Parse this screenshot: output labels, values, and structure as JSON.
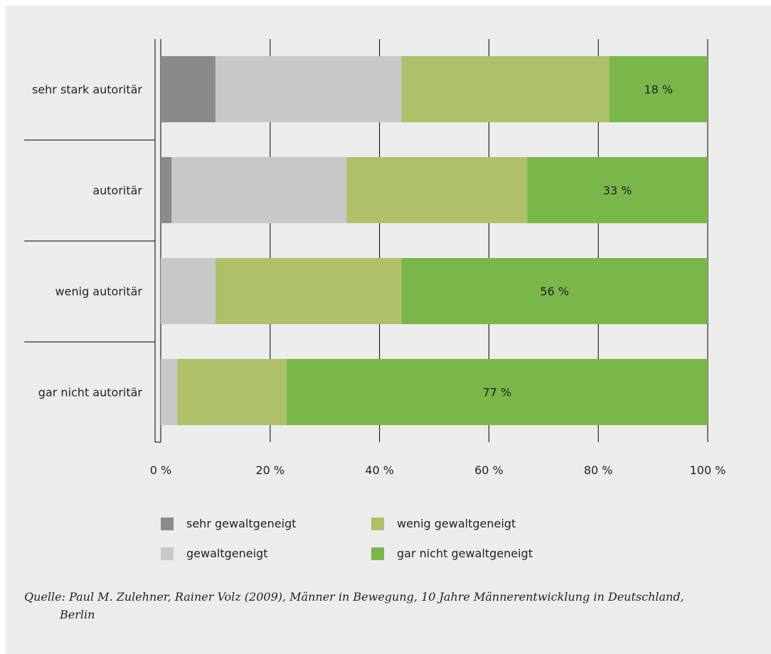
{
  "colors": {
    "sehr_gewaltgeneigt": "#8a8a8a",
    "gewaltgeneigt": "#c8c8c9",
    "wenig_gewaltgeneigt": "#afc06a",
    "gar_nicht_gewaltgeneigt": "#7ab74a",
    "background": "#ebeceb",
    "grid": "#000000"
  },
  "chart_data": {
    "type": "bar",
    "orientation": "horizontal",
    "stacked": true,
    "categories": [
      "sehr stark autoritär",
      "autoritär",
      "wenig autoritär",
      "gar nicht autoritär"
    ],
    "series": [
      {
        "name": "sehr gewaltgeneigt",
        "values": [
          10,
          2,
          0,
          0
        ]
      },
      {
        "name": "gewaltgeneigt",
        "values": [
          34,
          32,
          10,
          3
        ]
      },
      {
        "name": "wenig gewaltgeneigt",
        "values": [
          38,
          33,
          34,
          20
        ]
      },
      {
        "name": "gar nicht gewaltgeneigt",
        "values": [
          18,
          33,
          56,
          77
        ]
      }
    ],
    "data_labels": [
      "18 %",
      "33 %",
      "56 %",
      "77 %"
    ],
    "xticks": [
      "0 %",
      "20 %",
      "40 %",
      "60 %",
      "80 %",
      "100 %"
    ],
    "xlim": [
      0,
      100
    ],
    "grid": "vertical",
    "legend_position": "bottom"
  },
  "legend": [
    {
      "label": "sehr gewaltgeneigt",
      "color_key": "sehr_gewaltgeneigt"
    },
    {
      "label": "gewaltgeneigt",
      "color_key": "gewaltgeneigt"
    },
    {
      "label": "wenig gewaltgeneigt",
      "color_key": "wenig_gewaltgeneigt"
    },
    {
      "label": "gar nicht gewaltgeneigt",
      "color_key": "gar_nicht_gewaltgeneigt"
    }
  ],
  "source": {
    "line1": "Quelle: Paul M. Zulehner, Rainer Volz (2009), Männer in Bewegung, 10 Jahre Männerentwicklung in Deutschland,",
    "line2": "Berlin"
  }
}
